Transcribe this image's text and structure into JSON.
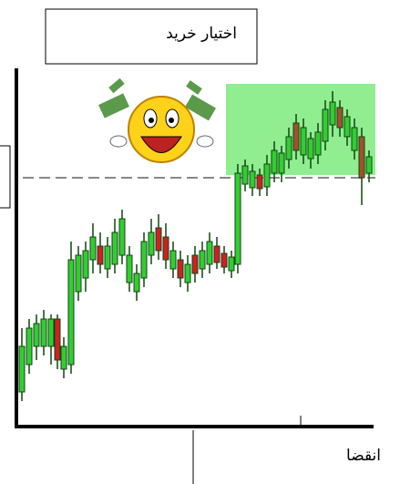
{
  "header": {
    "title": "اختیار خرید"
  },
  "axis": {
    "label": "انقضا"
  }
}
